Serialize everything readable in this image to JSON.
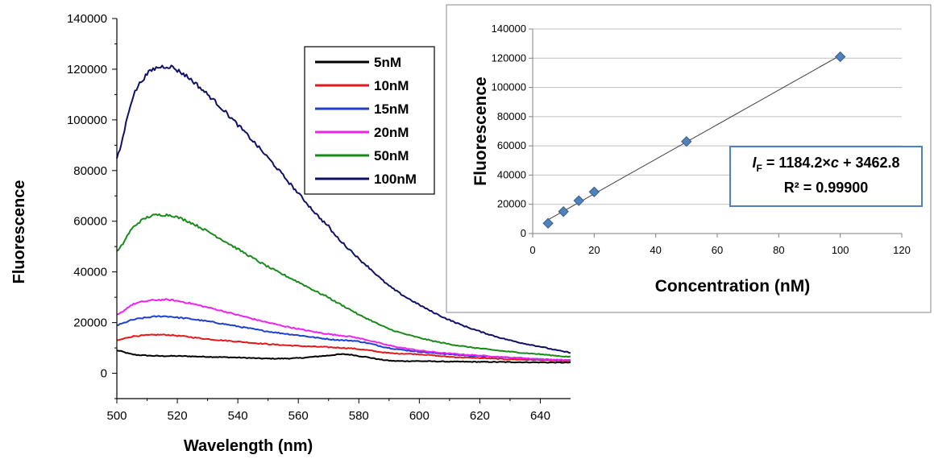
{
  "chart_data": [
    {
      "type": "line",
      "xlabel": "Wavelength (nm)",
      "ylabel": "Fluorescence",
      "xlim": [
        500,
        650
      ],
      "ylim": [
        -10000,
        140000
      ],
      "xticks": [
        500,
        520,
        540,
        560,
        580,
        600,
        620,
        640
      ],
      "yticks": [
        0,
        20000,
        40000,
        60000,
        80000,
        100000,
        120000,
        140000
      ],
      "legend_position": "top-right",
      "x": [
        500,
        505,
        510,
        515,
        520,
        530,
        540,
        550,
        560,
        570,
        575,
        580,
        590,
        600,
        610,
        620,
        630,
        640,
        650
      ],
      "series": [
        {
          "name": "5nM",
          "color": "#000000",
          "values": [
            9000,
            7500,
            7000,
            6800,
            6800,
            6500,
            6200,
            5800,
            6000,
            7000,
            7500,
            6800,
            5000,
            4800,
            4600,
            4500,
            4400,
            4300,
            4200
          ]
        },
        {
          "name": "10nM",
          "color": "#e31a1c",
          "values": [
            13000,
            14500,
            15000,
            15200,
            14800,
            13500,
            12500,
            11500,
            10800,
            10300,
            10000,
            9500,
            8000,
            7500,
            6500,
            6000,
            5500,
            5200,
            4800
          ]
        },
        {
          "name": "15nM",
          "color": "#1f3fcf",
          "values": [
            19000,
            21000,
            22000,
            22500,
            22000,
            20500,
            18500,
            16500,
            15000,
            13500,
            13000,
            12500,
            10000,
            8500,
            7500,
            6700,
            6200,
            5600,
            5000
          ]
        },
        {
          "name": "20nM",
          "color": "#ee22ee",
          "values": [
            23000,
            27000,
            28500,
            29000,
            28500,
            26000,
            23000,
            20000,
            17500,
            15500,
            14800,
            13800,
            11000,
            9000,
            7800,
            7000,
            6200,
            5600,
            5200
          ]
        },
        {
          "name": "50nM",
          "color": "#1a8a1a",
          "values": [
            48000,
            57000,
            61500,
            62500,
            61500,
            56000,
            49000,
            42000,
            36000,
            30000,
            26500,
            23000,
            17500,
            14000,
            11500,
            9800,
            8500,
            7500,
            6500
          ]
        },
        {
          "name": "100nM",
          "color": "#101066",
          "values": [
            85000,
            108000,
            118000,
            121000,
            119500,
            110000,
            98000,
            85000,
            71000,
            58000,
            51000,
            45000,
            34500,
            27000,
            21000,
            16500,
            13000,
            10500,
            8200
          ]
        }
      ]
    },
    {
      "type": "scatter",
      "xlabel": "Concentration (nM)",
      "ylabel": "Fluorescence",
      "xlim": [
        0,
        120
      ],
      "ylim": [
        0,
        140000
      ],
      "xticks": [
        0,
        20,
        40,
        60,
        80,
        100,
        120
      ],
      "yticks": [
        0,
        20000,
        40000,
        60000,
        80000,
        100000,
        120000,
        140000
      ],
      "grid": true,
      "points": [
        {
          "x": 5,
          "y": 7000
        },
        {
          "x": 10,
          "y": 15000
        },
        {
          "x": 15,
          "y": 22500
        },
        {
          "x": 20,
          "y": 28500
        },
        {
          "x": 50,
          "y": 63000
        },
        {
          "x": 100,
          "y": 121000
        }
      ],
      "fit": {
        "slope": 1184.2,
        "intercept": 3462.8,
        "x_range": [
          5,
          100
        ]
      },
      "annotation": {
        "eq_lhs_italic": "I",
        "eq_lhs_sub": "F",
        "eq_mid": " = 1184.2×",
        "eq_var_italic": "c",
        "eq_tail": " + 3462.8",
        "r2": "R² = 0.99900"
      }
    }
  ]
}
